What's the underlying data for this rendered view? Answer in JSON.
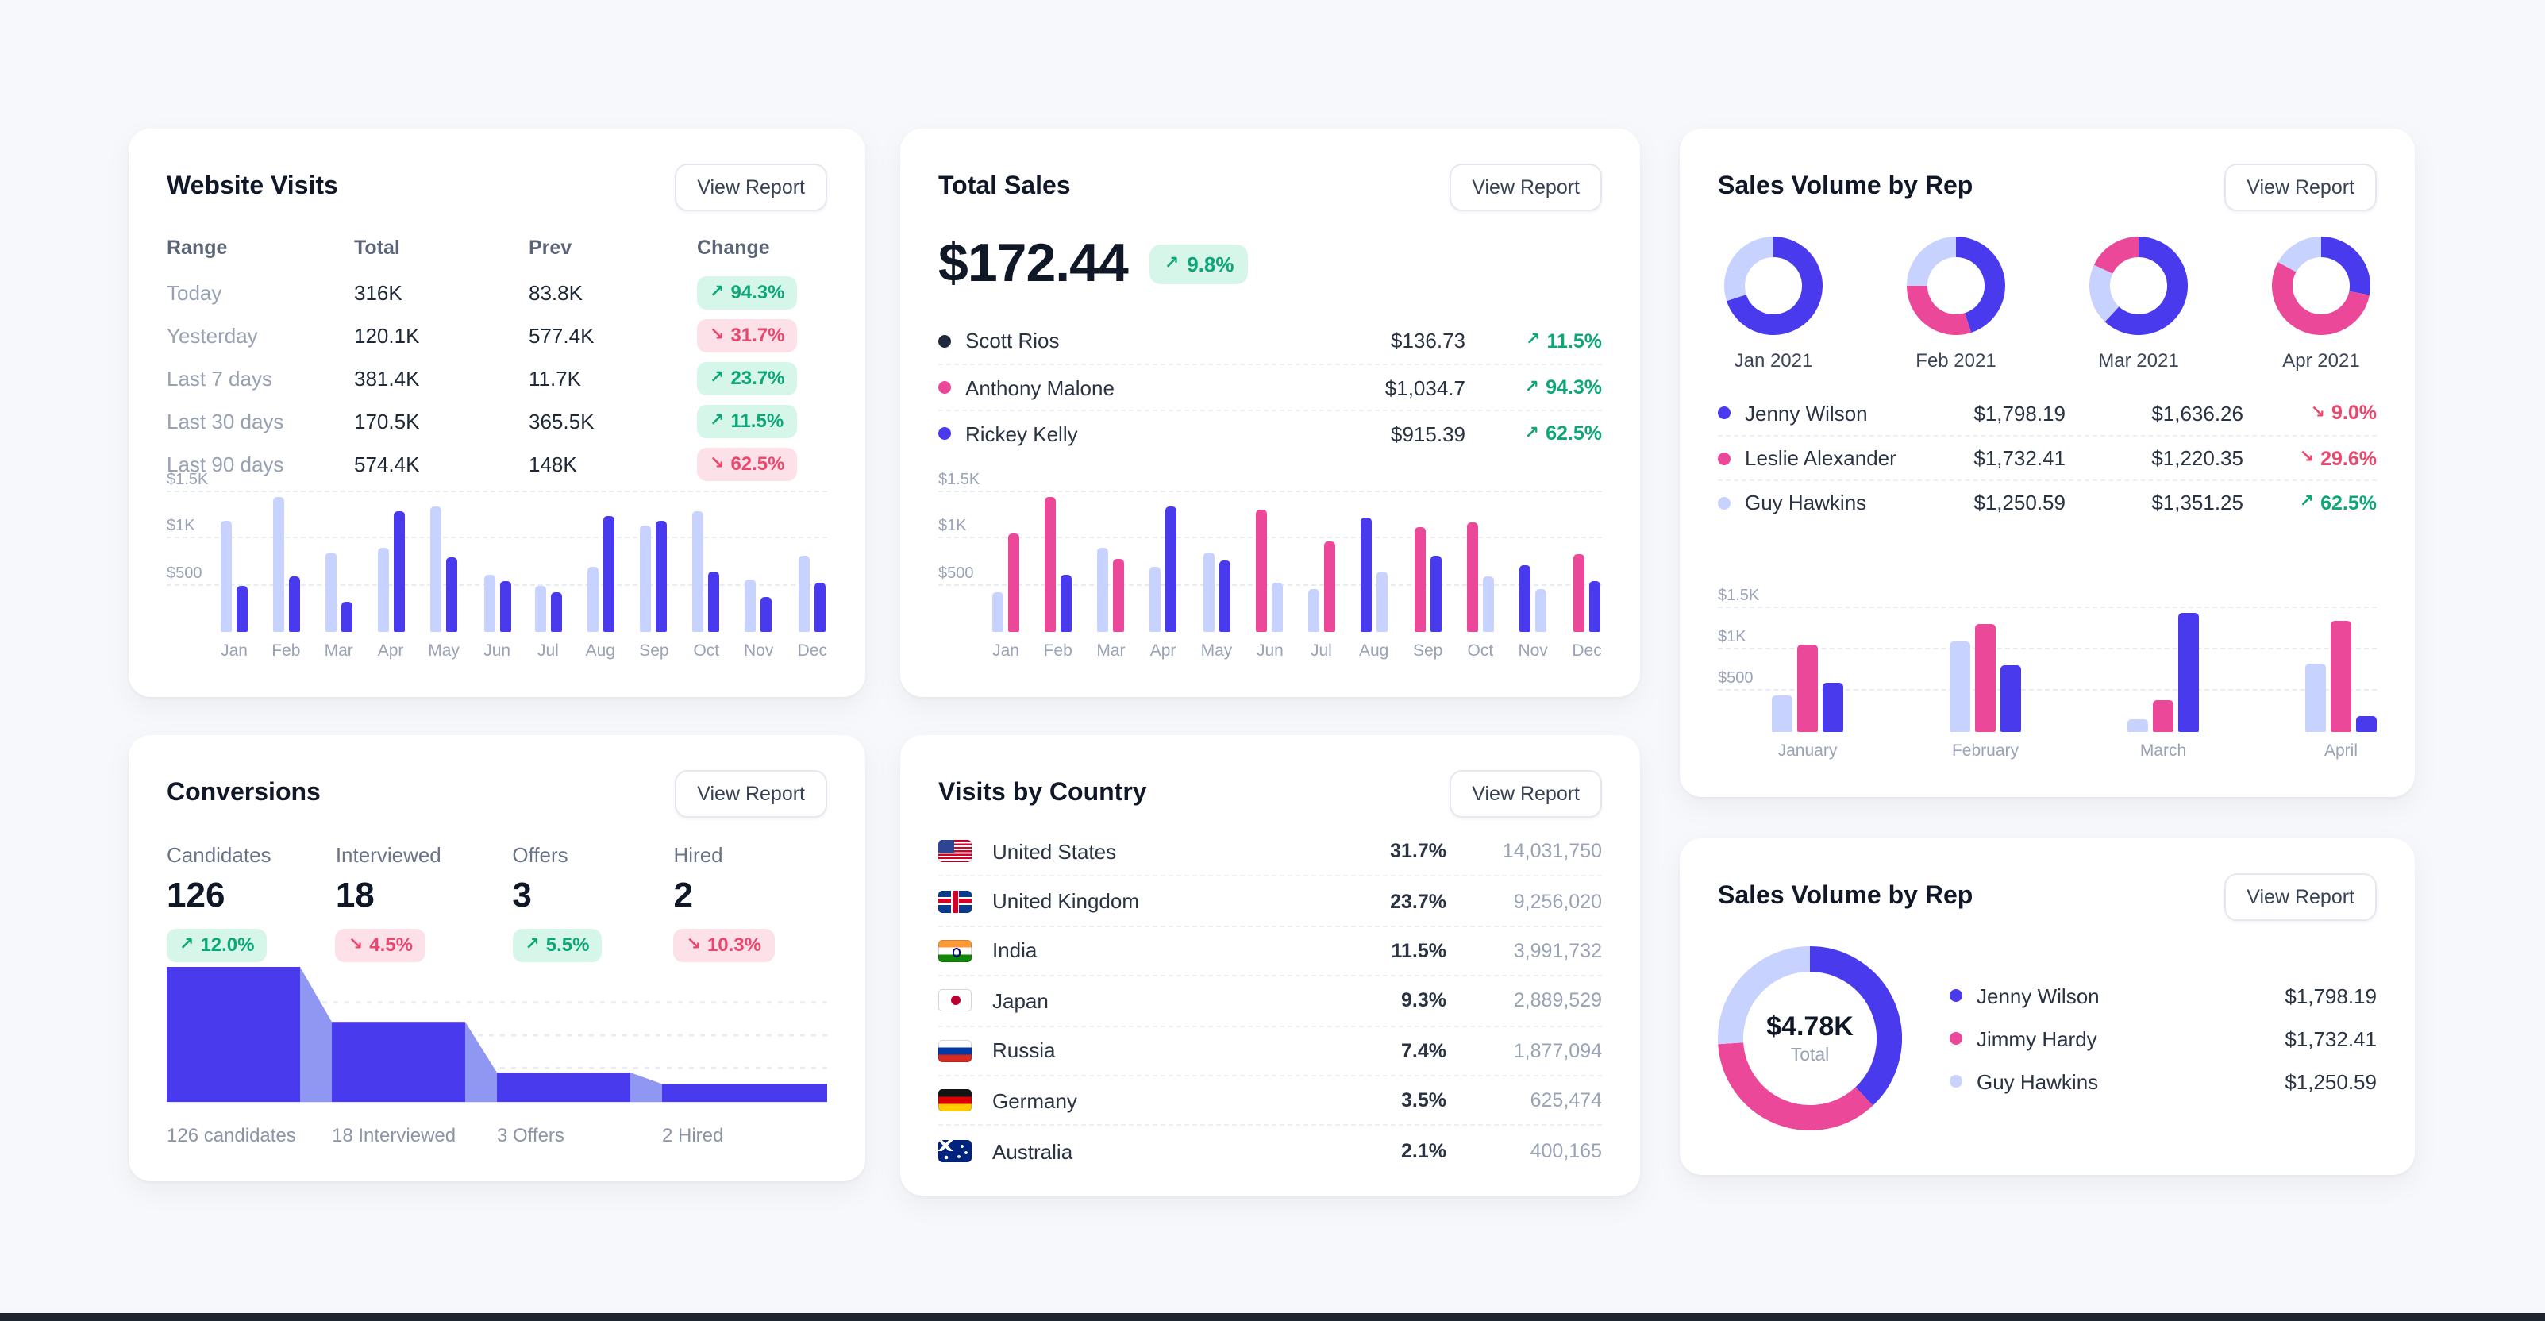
{
  "ui": {
    "view_report_label": "View Report",
    "trend_up_icon": "↗",
    "trend_down_icon": "↘"
  },
  "colors": {
    "indigo": "#4a3aee",
    "lavender": "#c7d2fe",
    "pink": "#ec4899",
    "navy": "#1e293b",
    "funnel_light": "#8f97f3",
    "green": "#0da678",
    "red": "#e9476e"
  },
  "website_visits": {
    "title": "Website Visits",
    "columns": [
      "Range",
      "Total",
      "Prev",
      "Change"
    ],
    "rows": [
      {
        "range": "Today",
        "total": "316K",
        "prev": "83.8K",
        "change": "94.3%",
        "direction": "up"
      },
      {
        "range": "Yesterday",
        "total": "120.1K",
        "prev": "577.4K",
        "change": "31.7%",
        "direction": "down"
      },
      {
        "range": "Last 7 days",
        "total": "381.4K",
        "prev": "11.7K",
        "change": "23.7%",
        "direction": "up"
      },
      {
        "range": "Last 30 days",
        "total": "170.5K",
        "prev": "365.5K",
        "change": "11.5%",
        "direction": "up"
      },
      {
        "range": "Last 90 days",
        "total": "574.4K",
        "prev": "148K",
        "change": "62.5%",
        "direction": "down"
      }
    ],
    "chart": {
      "type": "bar",
      "y_max": 1500,
      "y_ticks": [
        {
          "label": "$1.5K",
          "value": 1500
        },
        {
          "label": "$1K",
          "value": 1000
        },
        {
          "label": "$500",
          "value": 500
        }
      ],
      "groups": [
        {
          "label": "Jan",
          "bars": [
            {
              "color": "lavender",
              "value": 1200
            },
            {
              "color": "indigo",
              "value": 500
            }
          ]
        },
        {
          "label": "Feb",
          "bars": [
            {
              "color": "lavender",
              "value": 1450
            },
            {
              "color": "indigo",
              "value": 600
            }
          ]
        },
        {
          "label": "Mar",
          "bars": [
            {
              "color": "lavender",
              "value": 850
            },
            {
              "color": "indigo",
              "value": 320
            }
          ]
        },
        {
          "label": "Apr",
          "bars": [
            {
              "color": "lavender",
              "value": 900
            },
            {
              "color": "indigo",
              "value": 1300
            }
          ]
        },
        {
          "label": "May",
          "bars": [
            {
              "color": "lavender",
              "value": 1350
            },
            {
              "color": "indigo",
              "value": 800
            }
          ]
        },
        {
          "label": "Jun",
          "bars": [
            {
              "color": "lavender",
              "value": 620
            },
            {
              "color": "indigo",
              "value": 550
            }
          ]
        },
        {
          "label": "Jul",
          "bars": [
            {
              "color": "lavender",
              "value": 500
            },
            {
              "color": "indigo",
              "value": 430
            }
          ]
        },
        {
          "label": "Aug",
          "bars": [
            {
              "color": "lavender",
              "value": 700
            },
            {
              "color": "indigo",
              "value": 1250
            }
          ]
        },
        {
          "label": "Sep",
          "bars": [
            {
              "color": "lavender",
              "value": 1150
            },
            {
              "color": "indigo",
              "value": 1200
            }
          ]
        },
        {
          "label": "Oct",
          "bars": [
            {
              "color": "lavender",
              "value": 1300
            },
            {
              "color": "indigo",
              "value": 650
            }
          ]
        },
        {
          "label": "Nov",
          "bars": [
            {
              "color": "lavender",
              "value": 560
            },
            {
              "color": "indigo",
              "value": 380
            }
          ]
        },
        {
          "label": "Dec",
          "bars": [
            {
              "color": "lavender",
              "value": 820
            },
            {
              "color": "indigo",
              "value": 520
            }
          ]
        }
      ]
    }
  },
  "total_sales": {
    "title": "Total Sales",
    "amount": "$172.44",
    "badge": {
      "change": "9.8%",
      "direction": "up"
    },
    "people": [
      {
        "name": "Scott Rios",
        "color": "navy",
        "value": "$136.73",
        "change": "11.5%",
        "direction": "up"
      },
      {
        "name": "Anthony Malone",
        "color": "pink",
        "value": "$1,034.7",
        "change": "94.3%",
        "direction": "up"
      },
      {
        "name": "Rickey Kelly",
        "color": "indigo",
        "value": "$915.39",
        "change": "62.5%",
        "direction": "up"
      }
    ],
    "chart": {
      "type": "bar",
      "y_max": 1500,
      "y_ticks": [
        {
          "label": "$1.5K",
          "value": 1500
        },
        {
          "label": "$1K",
          "value": 1000
        },
        {
          "label": "$500",
          "value": 500
        }
      ],
      "groups": [
        {
          "label": "Jan",
          "bars": [
            {
              "color": "lavender",
              "value": 420
            },
            {
              "color": "pink",
              "value": 1050
            }
          ]
        },
        {
          "label": "Feb",
          "bars": [
            {
              "color": "pink",
              "value": 1450
            },
            {
              "color": "indigo",
              "value": 620
            }
          ]
        },
        {
          "label": "Mar",
          "bars": [
            {
              "color": "lavender",
              "value": 900
            },
            {
              "color": "pink",
              "value": 780
            }
          ]
        },
        {
          "label": "Apr",
          "bars": [
            {
              "color": "lavender",
              "value": 700
            },
            {
              "color": "indigo",
              "value": 1350
            }
          ]
        },
        {
          "label": "May",
          "bars": [
            {
              "color": "lavender",
              "value": 860
            },
            {
              "color": "indigo",
              "value": 760
            }
          ]
        },
        {
          "label": "Jun",
          "bars": [
            {
              "color": "pink",
              "value": 1320
            },
            {
              "color": "lavender",
              "value": 520
            }
          ]
        },
        {
          "label": "Jul",
          "bars": [
            {
              "color": "lavender",
              "value": 460
            },
            {
              "color": "pink",
              "value": 980
            }
          ]
        },
        {
          "label": "Aug",
          "bars": [
            {
              "color": "indigo",
              "value": 1220
            },
            {
              "color": "lavender",
              "value": 640
            }
          ]
        },
        {
          "label": "Sep",
          "bars": [
            {
              "color": "pink",
              "value": 1120
            },
            {
              "color": "indigo",
              "value": 820
            }
          ]
        },
        {
          "label": "Oct",
          "bars": [
            {
              "color": "pink",
              "value": 1180
            },
            {
              "color": "lavender",
              "value": 600
            }
          ]
        },
        {
          "label": "Nov",
          "bars": [
            {
              "color": "indigo",
              "value": 720
            },
            {
              "color": "lavender",
              "value": 460
            }
          ]
        },
        {
          "label": "Dec",
          "bars": [
            {
              "color": "pink",
              "value": 840
            },
            {
              "color": "indigo",
              "value": 540
            }
          ]
        }
      ]
    }
  },
  "sales_volume_top": {
    "title": "Sales Volume by Rep",
    "donuts": [
      {
        "label": "Jan 2021",
        "segments": [
          {
            "color": "indigo",
            "value": 70
          },
          {
            "color": "lavender",
            "value": 30
          }
        ]
      },
      {
        "label": "Feb 2021",
        "segments": [
          {
            "color": "indigo",
            "value": 45
          },
          {
            "color": "pink",
            "value": 30
          },
          {
            "color": "lavender",
            "value": 25
          }
        ]
      },
      {
        "label": "Mar 2021",
        "segments": [
          {
            "color": "indigo",
            "value": 62
          },
          {
            "color": "lavender",
            "value": 20
          },
          {
            "color": "pink",
            "value": 18
          }
        ]
      },
      {
        "label": "Apr 2021",
        "segments": [
          {
            "color": "indigo",
            "value": 28
          },
          {
            "color": "pink",
            "value": 55
          },
          {
            "color": "lavender",
            "value": 17
          }
        ]
      }
    ],
    "legend": [
      {
        "name": "Jenny Wilson",
        "color": "indigo",
        "current": "$1,798.19",
        "previous": "$1,636.26",
        "change": "9.0%",
        "direction": "down"
      },
      {
        "name": "Leslie Alexander",
        "color": "pink",
        "current": "$1,732.41",
        "previous": "$1,220.35",
        "change": "29.6%",
        "direction": "down"
      },
      {
        "name": "Guy Hawkins",
        "color": "lavender",
        "current": "$1,250.59",
        "previous": "$1,351.25",
        "change": "62.5%",
        "direction": "up"
      }
    ],
    "chart": {
      "type": "bar",
      "y_max": 1500,
      "y_ticks": [
        {
          "label": "$1.5K",
          "value": 1500
        },
        {
          "label": "$1K",
          "value": 1000
        },
        {
          "label": "$500",
          "value": 500
        }
      ],
      "groups": [
        {
          "label": "January",
          "bars": [
            {
              "color": "lavender",
              "value": 450
            },
            {
              "color": "pink",
              "value": 1050
            },
            {
              "color": "indigo",
              "value": 600
            }
          ]
        },
        {
          "label": "February",
          "bars": [
            {
              "color": "lavender",
              "value": 1100
            },
            {
              "color": "pink",
              "value": 1300
            },
            {
              "color": "indigo",
              "value": 800
            }
          ]
        },
        {
          "label": "March",
          "bars": [
            {
              "color": "lavender",
              "value": 150
            },
            {
              "color": "pink",
              "value": 380
            },
            {
              "color": "indigo",
              "value": 1450
            }
          ]
        },
        {
          "label": "April",
          "bars": [
            {
              "color": "lavender",
              "value": 820
            },
            {
              "color": "pink",
              "value": 1350
            },
            {
              "color": "indigo",
              "value": 200
            }
          ]
        }
      ]
    }
  },
  "conversions": {
    "title": "Conversions",
    "stats": [
      {
        "label": "Candidates",
        "value": "126",
        "change": "12.0%",
        "direction": "up"
      },
      {
        "label": "Interviewed",
        "value": "18",
        "change": "4.5%",
        "direction": "down"
      },
      {
        "label": "Offers",
        "value": "3",
        "change": "5.5%",
        "direction": "up"
      },
      {
        "label": "Hired",
        "value": "2",
        "change": "10.3%",
        "direction": "down"
      }
    ],
    "funnel": {
      "type": "funnel",
      "stages": [
        {
          "count": 126,
          "label": "126 candidates"
        },
        {
          "count": 18,
          "label": "18 Interviewed"
        },
        {
          "count": 3,
          "label": "3 Offers"
        },
        {
          "count": 2,
          "label": "2 Hired"
        }
      ]
    }
  },
  "visits_by_country": {
    "title": "Visits by Country",
    "rows": [
      {
        "flag": "us",
        "name": "United States",
        "percent": "31.7%",
        "visits": "14,031,750"
      },
      {
        "flag": "gb",
        "name": "United Kingdom",
        "percent": "23.7%",
        "visits": "9,256,020"
      },
      {
        "flag": "in",
        "name": "India",
        "percent": "11.5%",
        "visits": "3,991,732"
      },
      {
        "flag": "jp",
        "name": "Japan",
        "percent": "9.3%",
        "visits": "2,889,529"
      },
      {
        "flag": "ru",
        "name": "Russia",
        "percent": "7.4%",
        "visits": "1,877,094"
      },
      {
        "flag": "de",
        "name": "Germany",
        "percent": "3.5%",
        "visits": "625,474"
      },
      {
        "flag": "au",
        "name": "Australia",
        "percent": "2.1%",
        "visits": "400,165"
      }
    ]
  },
  "sales_volume_bottom": {
    "title": "Sales Volume by Rep",
    "donut": {
      "center_value": "$4.78K",
      "center_label": "Total",
      "segments": [
        {
          "color": "indigo",
          "value": 38
        },
        {
          "color": "pink",
          "value": 36
        },
        {
          "color": "lavender",
          "value": 26
        }
      ]
    },
    "legend": [
      {
        "name": "Jenny Wilson",
        "color": "indigo",
        "value": "$1,798.19"
      },
      {
        "name": "Jimmy Hardy",
        "color": "pink",
        "value": "$1,732.41"
      },
      {
        "name": "Guy Hawkins",
        "color": "lavender",
        "value": "$1,250.59"
      }
    ]
  }
}
